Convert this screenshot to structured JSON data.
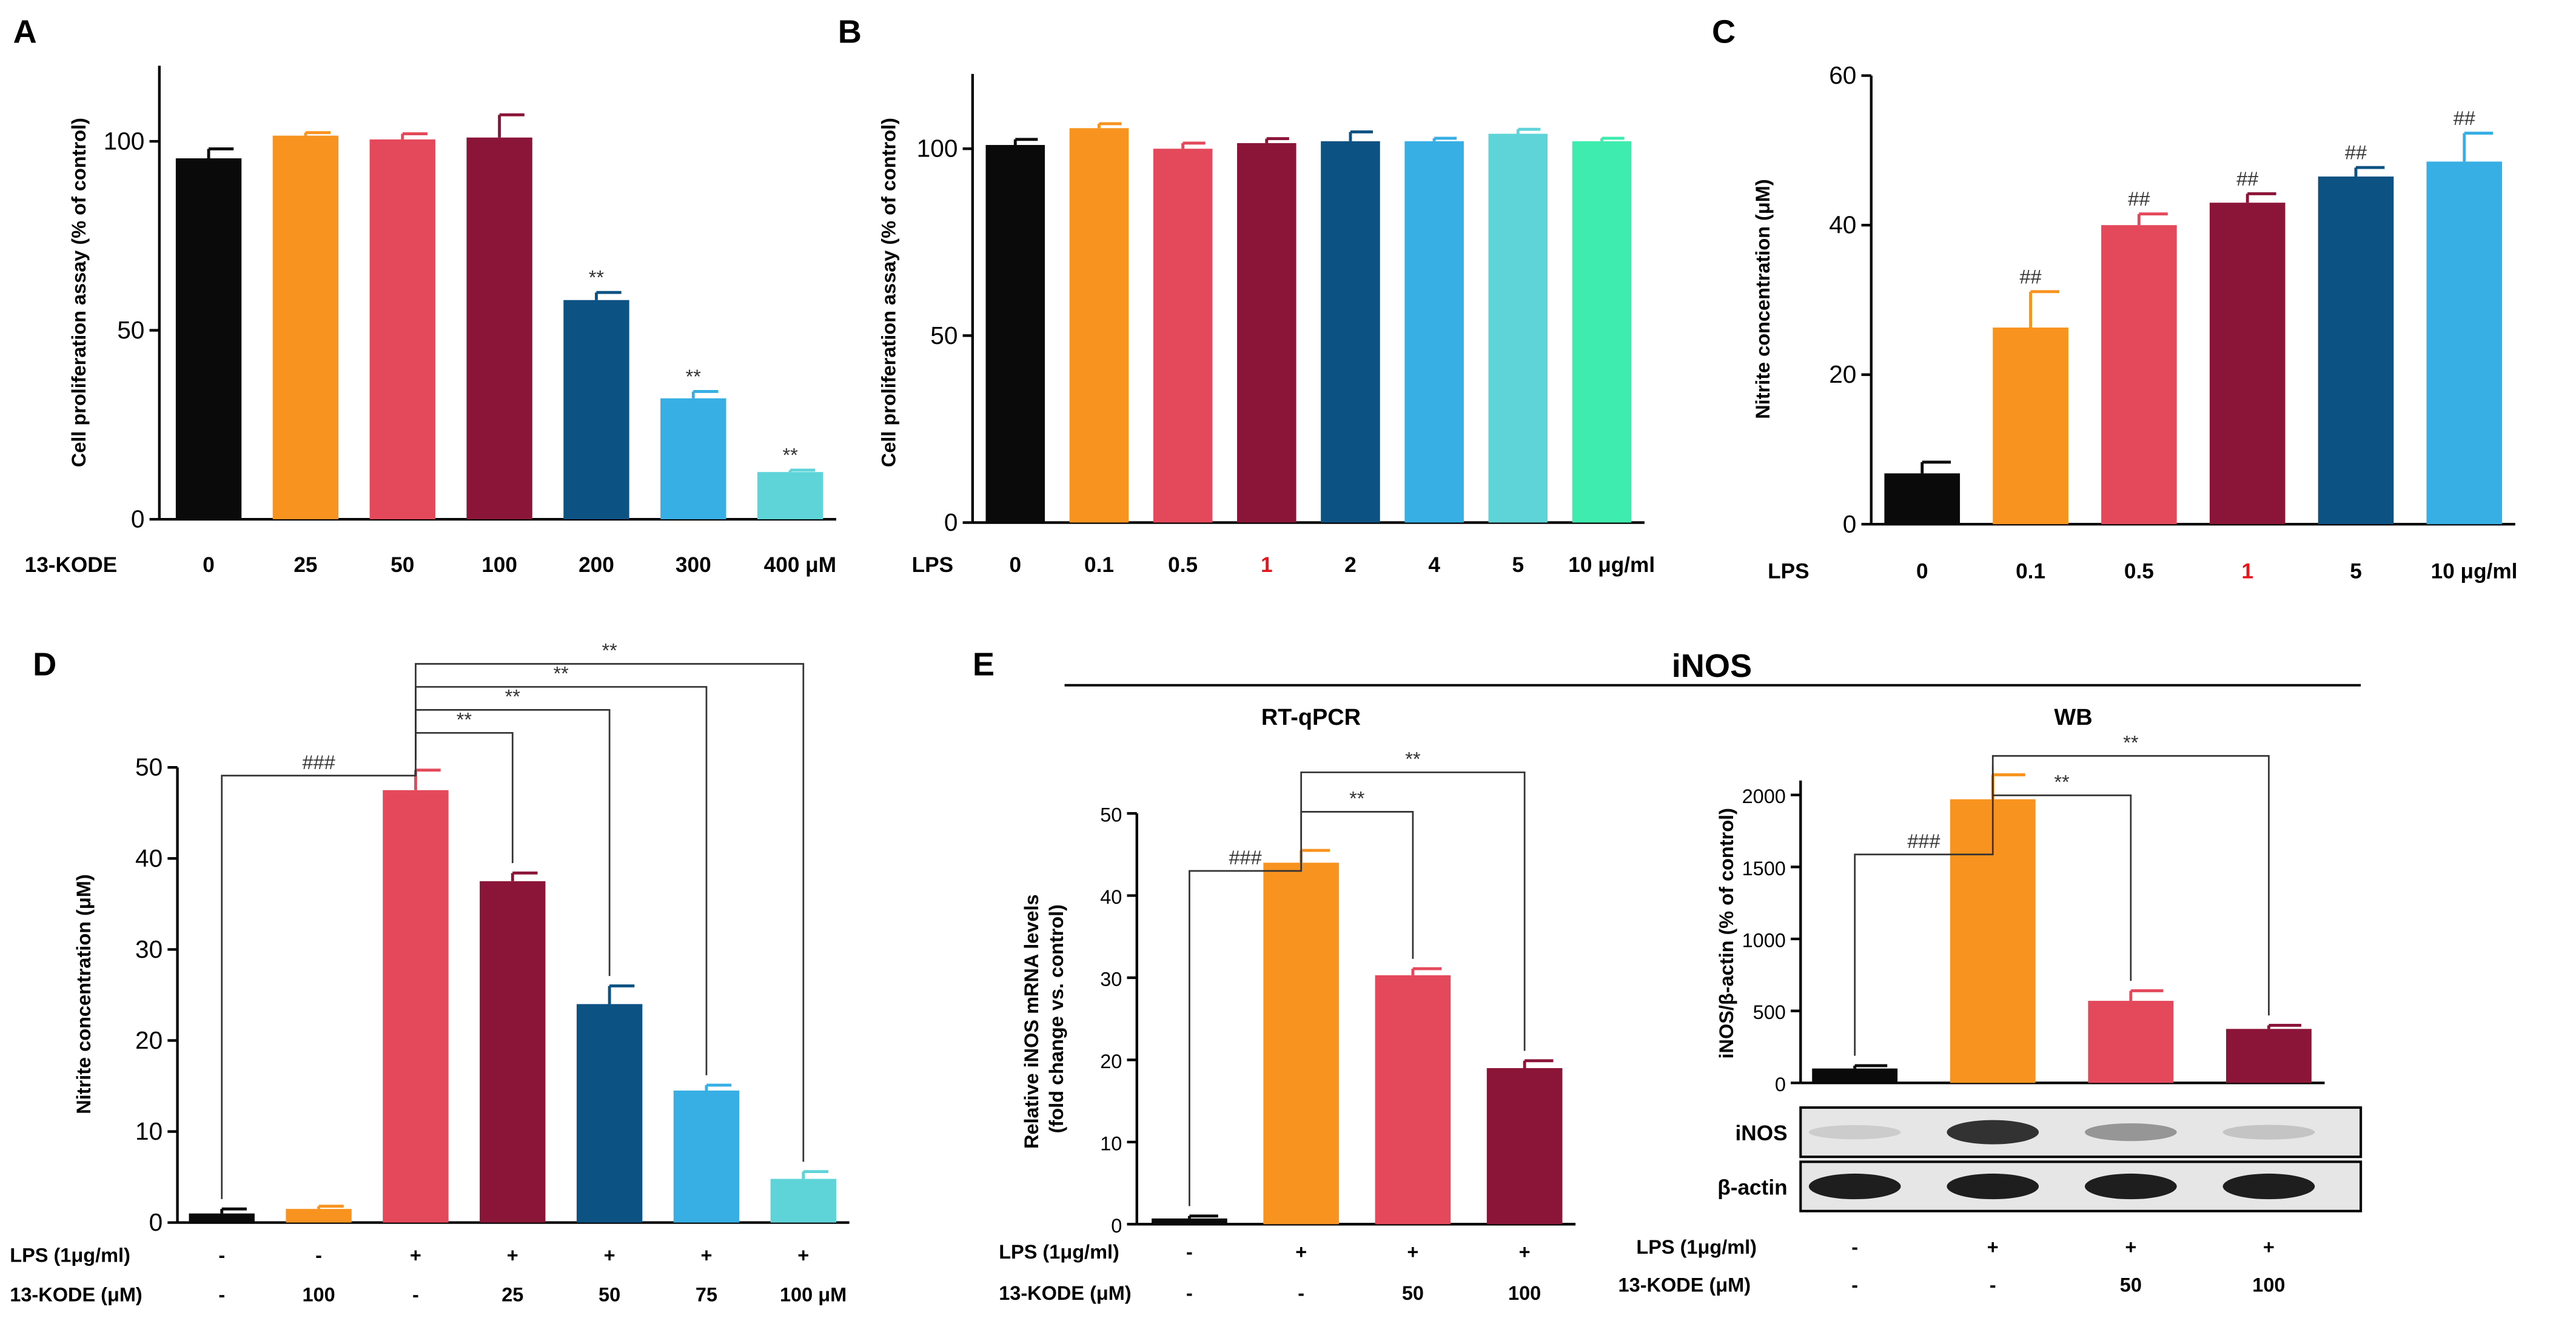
{
  "colors": {
    "black": "#0a0a0a",
    "orange": "#f7931e",
    "red": "#e3495a",
    "maroon": "#8b1538",
    "navy": "#0c5283",
    "skyblue": "#37aee4",
    "teal": "#5fd4d8",
    "green": "#3fecb0",
    "highlight": "#e8151b"
  },
  "chart_data": [
    {
      "id": "A",
      "type": "bar",
      "panel_label": "A",
      "title": "",
      "ylabel": "Cell proliferation assay (% of control)",
      "row_label": "13-KODE",
      "categories": [
        "0",
        "25",
        "50",
        "100",
        "200",
        "300",
        "400 μM"
      ],
      "values": [
        95.5,
        101.5,
        100.5,
        101,
        58,
        32,
        12.5
      ],
      "errors": [
        2.5,
        0.8,
        1.5,
        6,
        2,
        1.8,
        0.5
      ],
      "annotations": [
        "",
        "",
        "",
        "",
        "**",
        "**",
        "**"
      ],
      "colors": [
        "#0a0a0a",
        "#f7931e",
        "#e3495a",
        "#8b1538",
        "#0c5283",
        "#37aee4",
        "#5fd4d8"
      ],
      "ylim": [
        0,
        120
      ],
      "yticks": [
        0,
        50,
        100
      ]
    },
    {
      "id": "B",
      "type": "bar",
      "panel_label": "B",
      "title": "",
      "ylabel": "Cell proliferation assay (% of control)",
      "row_label": "LPS",
      "categories": [
        "0",
        "0.1",
        "0.5",
        "1",
        "2",
        "4",
        "5",
        "10 μg/ml"
      ],
      "highlight_category": "1",
      "values": [
        101,
        105.5,
        100,
        101.5,
        102,
        102,
        104,
        102
      ],
      "errors": [
        1.5,
        1.2,
        1.5,
        1.2,
        2.5,
        0.8,
        1.2,
        0.8
      ],
      "annotations": [
        "",
        "",
        "",
        "",
        "",
        "",
        "",
        ""
      ],
      "colors": [
        "#0a0a0a",
        "#f7931e",
        "#e3495a",
        "#8b1538",
        "#0c5283",
        "#37aee4",
        "#5fd4d8",
        "#3fecb0"
      ],
      "ylim": [
        0,
        120
      ],
      "yticks": [
        0,
        50,
        100
      ]
    },
    {
      "id": "C",
      "type": "bar",
      "panel_label": "C",
      "title": "",
      "ylabel": "Nitrite concentration (μM)",
      "row_label": "LPS",
      "categories": [
        "0",
        "0.1",
        "0.5",
        "1",
        "5",
        "10 μg/ml"
      ],
      "highlight_category": "1",
      "values": [
        6.8,
        26.3,
        40,
        43,
        46.5,
        48.5
      ],
      "errors": [
        1.5,
        4.8,
        1.5,
        1.2,
        1.2,
        3.8
      ],
      "annotations": [
        "",
        "##",
        "##",
        "##",
        "##",
        "##"
      ],
      "colors": [
        "#0a0a0a",
        "#f7931e",
        "#e3495a",
        "#8b1538",
        "#0c5283",
        "#37aee4"
      ],
      "ylim": [
        0,
        60
      ],
      "yticks": [
        0,
        20,
        40,
        60
      ]
    },
    {
      "id": "D",
      "type": "bar",
      "panel_label": "D",
      "title": "",
      "ylabel": "Nitrite concentration (μM)",
      "row_labels": [
        "LPS (1μg/ml)",
        "13-KODE  (μM)"
      ],
      "row_values": [
        [
          "-",
          "-",
          "+",
          "+",
          "+",
          "+",
          "+"
        ],
        [
          "-",
          "100",
          "-",
          "25",
          "50",
          "75",
          "100 μM"
        ]
      ],
      "values": [
        1,
        1.5,
        47.5,
        37.5,
        24,
        14.5,
        4.8
      ],
      "errors": [
        0.5,
        0.3,
        2.2,
        0.9,
        2,
        0.6,
        0.8
      ],
      "colors": [
        "#0a0a0a",
        "#f7931e",
        "#e3495a",
        "#8b1538",
        "#0c5283",
        "#37aee4",
        "#5fd4d8"
      ],
      "ylim": [
        0,
        50
      ],
      "yticks": [
        0,
        10,
        20,
        30,
        40,
        50
      ],
      "brackets": [
        {
          "from": 0,
          "to": 2,
          "label": "###"
        },
        {
          "from": 2,
          "to": 3,
          "label": "**"
        },
        {
          "from": 2,
          "to": 4,
          "label": "**"
        },
        {
          "from": 2,
          "to": 5,
          "label": "**"
        },
        {
          "from": 2,
          "to": 6,
          "label": "**"
        }
      ]
    },
    {
      "id": "E1",
      "type": "bar",
      "panel_label": "E",
      "title": "RT-qPCR",
      "group_title": "iNOS",
      "ylabel": "Relative iNOS mRNA levels (fold change vs. control)",
      "row_labels": [
        "LPS (1μg/ml)",
        "13-KODE  (μM)"
      ],
      "row_values": [
        [
          "-",
          "+",
          "+",
          "+"
        ],
        [
          "-",
          "-",
          "50",
          "100"
        ]
      ],
      "values": [
        0.7,
        44,
        30.3,
        19
      ],
      "errors": [
        0.3,
        1.5,
        0.8,
        0.9
      ],
      "colors": [
        "#0a0a0a",
        "#f7931e",
        "#e3495a",
        "#8b1538"
      ],
      "ylim": [
        0,
        50
      ],
      "yticks": [
        0,
        10,
        20,
        30,
        40,
        50
      ],
      "brackets": [
        {
          "from": 0,
          "to": 1,
          "label": "###"
        },
        {
          "from": 1,
          "to": 2,
          "label": "**"
        },
        {
          "from": 1,
          "to": 3,
          "label": "**"
        }
      ]
    },
    {
      "id": "E2",
      "type": "bar",
      "title": "WB",
      "ylabel": "iNOS/β-actin (% of control)",
      "row_labels": [
        "LPS (1μg/ml)",
        "13-KODE  (μM)"
      ],
      "row_values": [
        [
          "-",
          "+",
          "+",
          "+"
        ],
        [
          "-",
          "-",
          "50",
          "100"
        ]
      ],
      "values": [
        100,
        1970,
        570,
        375
      ],
      "errors": [
        20,
        170,
        70,
        25
      ],
      "colors": [
        "#0a0a0a",
        "#f7931e",
        "#e3495a",
        "#8b1538"
      ],
      "ylim": [
        0,
        2100
      ],
      "yticks": [
        0,
        500,
        1000,
        1500,
        2000
      ],
      "brackets": [
        {
          "from": 0,
          "to": 1,
          "label": "###"
        },
        {
          "from": 1,
          "to": 2,
          "label": "**"
        },
        {
          "from": 1,
          "to": 3,
          "label": "**"
        }
      ],
      "blots": [
        {
          "label": "iNOS",
          "intensity": [
            0.08,
            0.85,
            0.35,
            0.12
          ]
        },
        {
          "label": "β-actin",
          "intensity": [
            0.95,
            0.95,
            0.95,
            0.95
          ]
        }
      ]
    }
  ]
}
